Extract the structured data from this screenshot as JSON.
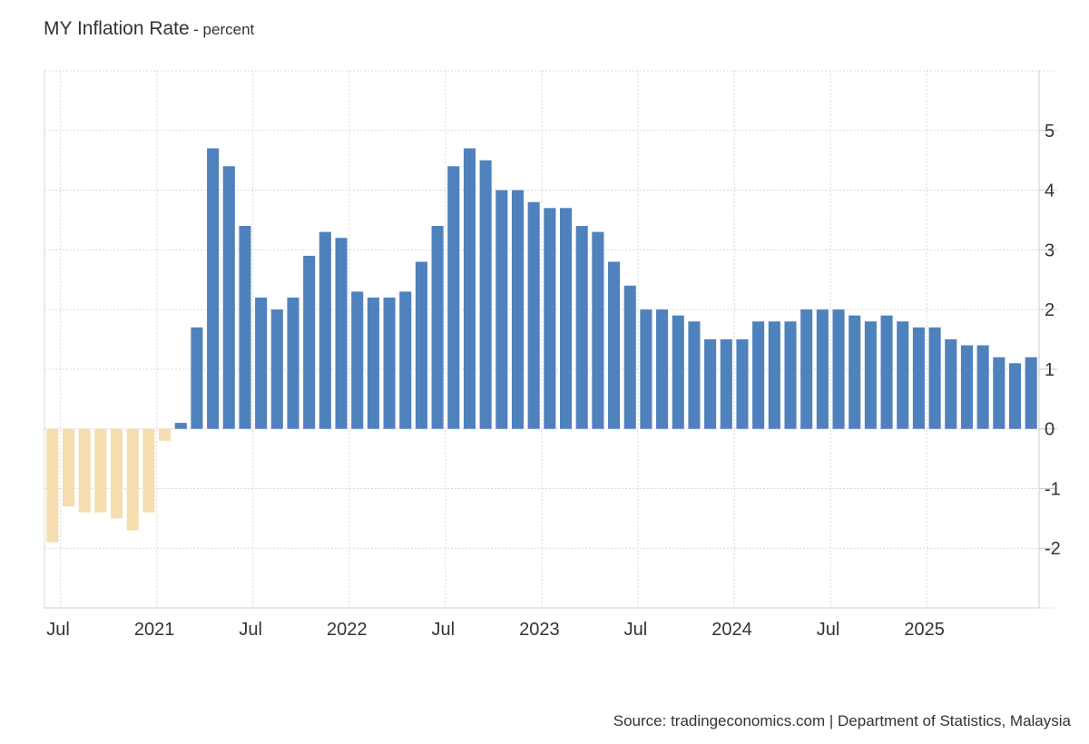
{
  "header": {
    "title": "MY Inflation Rate",
    "subtitle": "- percent"
  },
  "footer": {
    "source": "Source: tradingeconomics.com | Department of Statistics, Malaysia"
  },
  "colors": {
    "positive": "#4f81bd",
    "negative": "#f5ddb0",
    "grid": "#d9d9d9",
    "axis": "#cccccc",
    "text": "#333333"
  },
  "chart_data": {
    "type": "bar",
    "title": "MY Inflation Rate",
    "subtitle": "- percent",
    "xlabel": "",
    "ylabel": "",
    "ylim": [
      -3,
      6
    ],
    "yticks": [
      -2,
      -1,
      0,
      1,
      2,
      3,
      4,
      5
    ],
    "y_axis_side": "right",
    "grid": true,
    "x_ticks": [
      {
        "label": "Jul",
        "date": "2020-07"
      },
      {
        "label": "2021",
        "date": "2021-01"
      },
      {
        "label": "Jul",
        "date": "2021-07"
      },
      {
        "label": "2022",
        "date": "2022-01"
      },
      {
        "label": "Jul",
        "date": "2022-07"
      },
      {
        "label": "2023",
        "date": "2023-01"
      },
      {
        "label": "Jul",
        "date": "2023-07"
      },
      {
        "label": "2024",
        "date": "2024-01"
      },
      {
        "label": "Jul",
        "date": "2024-07"
      },
      {
        "label": "2025",
        "date": "2025-01"
      }
    ],
    "categories": [
      "2020-06",
      "2020-07",
      "2020-08",
      "2020-09",
      "2020-10",
      "2020-11",
      "2020-12",
      "2021-01",
      "2021-02",
      "2021-03",
      "2021-04",
      "2021-05",
      "2021-06",
      "2021-07",
      "2021-08",
      "2021-09",
      "2021-10",
      "2021-11",
      "2021-12",
      "2022-01",
      "2022-02",
      "2022-03",
      "2022-04",
      "2022-05",
      "2022-06",
      "2022-07",
      "2022-08",
      "2022-09",
      "2022-10",
      "2022-11",
      "2022-12",
      "2023-01",
      "2023-02",
      "2023-03",
      "2023-04",
      "2023-05",
      "2023-06",
      "2023-07",
      "2023-08",
      "2023-09",
      "2023-10",
      "2023-11",
      "2023-12",
      "2024-01",
      "2024-02",
      "2024-03",
      "2024-04",
      "2024-05",
      "2024-06",
      "2024-07",
      "2024-08",
      "2024-09",
      "2024-10",
      "2024-11",
      "2024-12",
      "2025-01",
      "2025-02",
      "2025-03",
      "2025-04",
      "2025-05",
      "2025-06",
      "2025-07"
    ],
    "values": [
      -1.9,
      -1.3,
      -1.4,
      -1.4,
      -1.5,
      -1.7,
      -1.4,
      -0.2,
      0.1,
      1.7,
      4.7,
      4.4,
      3.4,
      2.2,
      2.0,
      2.2,
      2.9,
      3.3,
      3.2,
      2.3,
      2.2,
      2.2,
      2.3,
      2.8,
      3.4,
      4.4,
      4.7,
      4.5,
      4.0,
      4.0,
      3.8,
      3.7,
      3.7,
      3.4,
      3.3,
      2.8,
      2.4,
      2.0,
      2.0,
      1.9,
      1.8,
      1.5,
      1.5,
      1.5,
      1.8,
      1.8,
      1.8,
      2.0,
      2.0,
      2.0,
      1.9,
      1.8,
      1.9,
      1.8,
      1.7,
      1.7,
      1.5,
      1.4,
      1.4,
      1.2,
      1.1,
      1.2
    ]
  }
}
